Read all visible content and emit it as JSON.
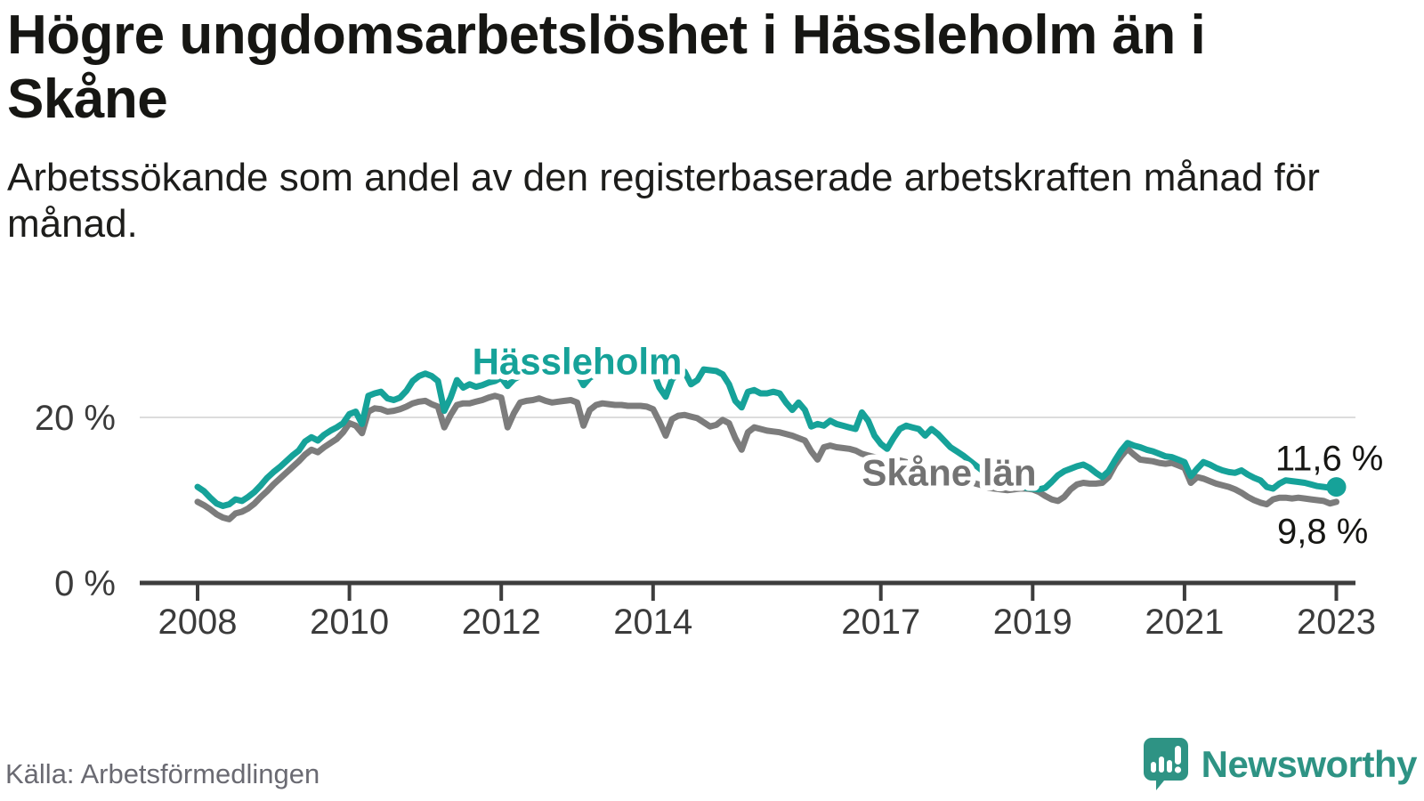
{
  "header": {
    "title": "Högre ungdomsarbetslöshet i Hässleholm än i Skåne",
    "subtitle": "Arbetssökande som andel av den registerbaserade arbetskraften månad för månad."
  },
  "footer": {
    "source": "Källa: Arbetsförmedlingen",
    "brand_name": "Newsworthy"
  },
  "colors": {
    "hassleholm_teal": "#16a299",
    "skane_gray": "#7c7c7c",
    "skane_label_gray": "#737373",
    "axis": "#3d3d3d",
    "tick_label": "#3b3b3b",
    "gridline": "#dcdcdc",
    "value_label": "#161613",
    "logo_teal": "#2e9384"
  },
  "chart_data": {
    "type": "line",
    "title": "Högre ungdomsarbetslöshet i Hässleholm än i Skåne",
    "unit": "%",
    "frequency": "monthly",
    "x_start_year": 2008,
    "x_end": "2023",
    "grid": "y gridline at 20 % only",
    "legend_position": "inline labels on lines",
    "ylim": [
      0,
      28
    ],
    "y_ticks": [
      {
        "value": 0,
        "label": "0 %"
      },
      {
        "value": 20,
        "label": "20 %"
      }
    ],
    "x_ticks": [
      2008,
      2010,
      2012,
      2014,
      2017,
      2019,
      2021,
      2023
    ],
    "series": [
      {
        "name": "Hässleholm",
        "slug": "hassleholm",
        "color": "#16a299",
        "end_label": "11,6 %",
        "end_value": 11.6,
        "end_marker": true,
        "label_anchor": {
          "year": 2013.0,
          "pct": 25.2
        },
        "end_label_anchor": {
          "year": 2023.62,
          "pct": 13.6
        },
        "values": [
          11.6,
          11.1,
          10.3,
          9.6,
          9.3,
          9.5,
          10.1,
          9.9,
          10.4,
          11.0,
          11.8,
          12.7,
          13.4,
          14.0,
          14.7,
          15.4,
          16.0,
          17.1,
          17.6,
          17.2,
          17.9,
          18.4,
          18.8,
          19.3,
          20.4,
          20.7,
          19.2,
          22.6,
          22.9,
          23.1,
          22.3,
          22.1,
          22.4,
          23.2,
          24.4,
          25.0,
          25.3,
          25.0,
          24.4,
          20.8,
          22.4,
          24.5,
          23.6,
          24.0,
          23.7,
          23.9,
          24.2,
          24.4,
          24.8,
          23.8,
          24.6,
          25.0,
          25.2,
          25.4,
          25.6,
          25.3,
          25.1,
          25.3,
          25.5,
          25.6,
          25.4,
          23.9,
          24.8,
          25.2,
          25.5,
          25.7,
          25.9,
          25.6,
          25.4,
          25.6,
          25.7,
          25.8,
          25.6,
          23.6,
          22.5,
          24.6,
          25.3,
          25.5,
          24.0,
          24.5,
          25.8,
          25.7,
          25.6,
          25.2,
          24.0,
          22.0,
          21.2,
          23.1,
          23.3,
          22.9,
          22.9,
          23.1,
          22.9,
          21.8,
          20.9,
          21.8,
          20.9,
          18.9,
          19.2,
          19.0,
          19.6,
          19.2,
          19.0,
          18.8,
          18.6,
          20.6,
          19.6,
          17.8,
          16.8,
          16.2,
          17.5,
          18.6,
          19.0,
          18.8,
          18.6,
          17.8,
          18.6,
          18.0,
          17.2,
          16.4,
          15.9,
          15.4,
          14.8,
          14.2,
          13.6,
          13.1,
          12.7,
          12.4,
          12.1,
          11.9,
          11.7,
          11.5,
          11.4,
          11.3,
          11.5,
          12.2,
          13.0,
          13.5,
          13.8,
          14.1,
          14.3,
          13.9,
          13.3,
          12.8,
          13.5,
          14.8,
          16.0,
          16.9,
          16.6,
          16.4,
          16.1,
          15.9,
          15.6,
          15.3,
          15.2,
          14.9,
          14.6,
          12.9,
          13.8,
          14.6,
          14.3,
          13.9,
          13.6,
          13.4,
          13.3,
          13.6,
          13.1,
          12.7,
          12.4,
          11.6,
          11.4,
          12.0,
          12.4,
          12.3,
          12.2,
          12.1,
          11.9,
          11.7,
          11.6,
          11.5,
          11.6
        ]
      },
      {
        "name": "Skåne län",
        "slug": "skane-lan",
        "color": "#7c7c7c",
        "label_color": "#737373",
        "end_label": "9,8 %",
        "end_value": 9.8,
        "end_marker": false,
        "label_anchor": {
          "year": 2017.9,
          "pct": 11.8
        },
        "end_label_anchor": {
          "year": 2023.42,
          "pct": 4.8
        },
        "values": [
          9.8,
          9.4,
          8.9,
          8.3,
          7.9,
          7.7,
          8.4,
          8.6,
          9.0,
          9.6,
          10.4,
          11.1,
          11.9,
          12.6,
          13.3,
          14.0,
          14.7,
          15.5,
          16.1,
          15.8,
          16.4,
          16.9,
          17.4,
          18.2,
          19.3,
          19.0,
          18.1,
          20.7,
          21.1,
          21.0,
          20.7,
          20.8,
          21.0,
          21.3,
          21.7,
          21.9,
          22.0,
          21.6,
          21.3,
          18.8,
          20.3,
          21.5,
          21.7,
          21.7,
          21.9,
          22.1,
          22.4,
          22.6,
          22.4,
          18.8,
          20.5,
          21.8,
          22.0,
          22.1,
          22.3,
          22.0,
          21.8,
          21.9,
          22.0,
          22.1,
          21.8,
          19.0,
          20.9,
          21.5,
          21.7,
          21.6,
          21.5,
          21.5,
          21.4,
          21.4,
          21.4,
          21.3,
          21.0,
          19.5,
          17.8,
          19.8,
          20.2,
          20.3,
          20.1,
          19.9,
          19.4,
          18.9,
          19.1,
          19.7,
          19.3,
          17.5,
          16.1,
          18.2,
          18.8,
          18.6,
          18.4,
          18.3,
          18.2,
          18.0,
          17.8,
          17.5,
          17.2,
          15.9,
          14.9,
          16.4,
          16.6,
          16.4,
          16.3,
          16.2,
          16.0,
          15.6,
          15.4,
          15.2,
          15.0,
          14.5,
          14.7,
          14.8,
          14.6,
          14.4,
          14.2,
          14.0,
          13.8,
          13.5,
          13.2,
          13.0,
          12.8,
          12.5,
          12.3,
          12.0,
          11.8,
          11.5,
          11.4,
          11.3,
          11.2,
          11.3,
          11.4,
          11.4,
          11.3,
          11.0,
          10.5,
          10.1,
          9.9,
          10.4,
          11.3,
          11.9,
          12.1,
          12.0,
          12.0,
          12.1,
          12.8,
          14.2,
          15.3,
          16.2,
          15.5,
          14.9,
          14.8,
          14.7,
          14.5,
          14.4,
          14.5,
          14.2,
          13.9,
          12.1,
          12.8,
          12.6,
          12.3,
          12.0,
          11.8,
          11.6,
          11.3,
          10.9,
          10.4,
          10.0,
          9.7,
          9.5,
          10.1,
          10.3,
          10.3,
          10.2,
          10.3,
          10.2,
          10.1,
          10.0,
          9.9,
          9.6,
          9.8
        ]
      }
    ]
  }
}
